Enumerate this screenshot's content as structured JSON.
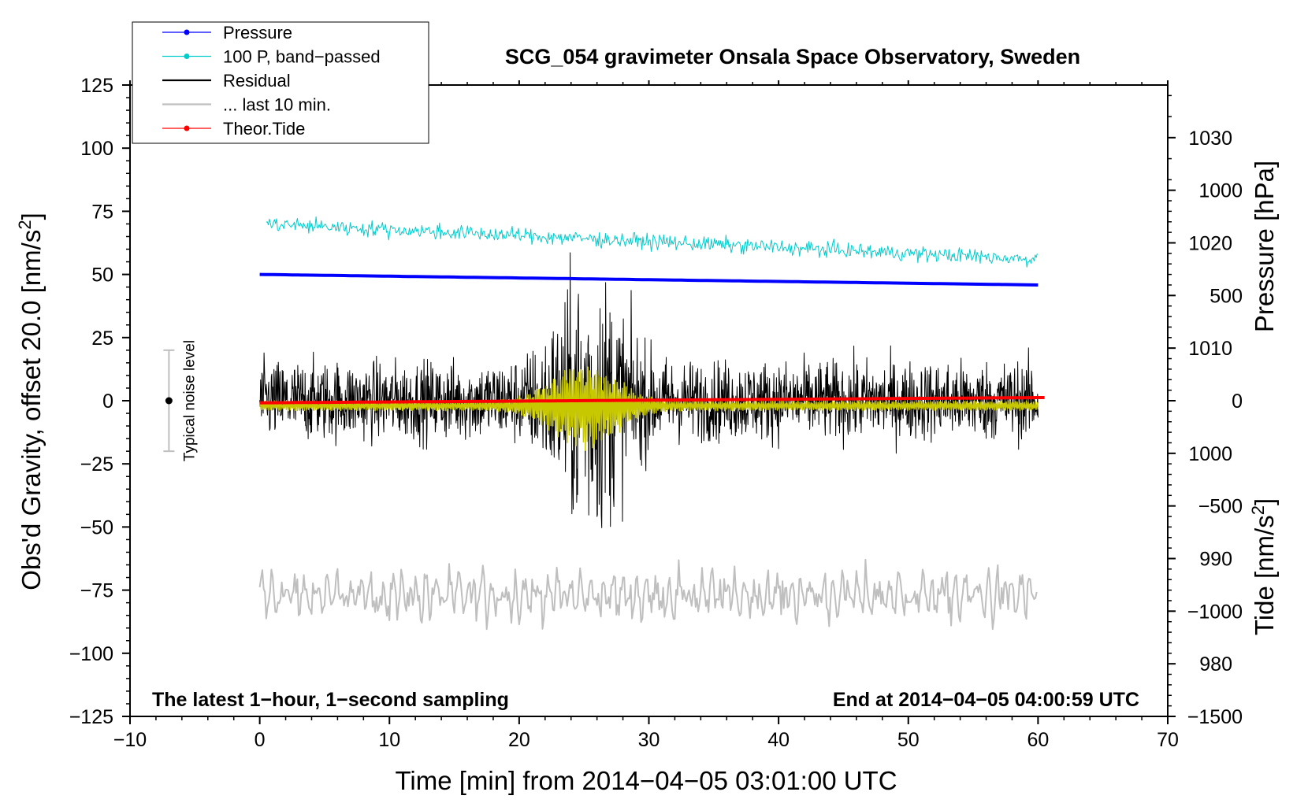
{
  "chart_data": {
    "type": "line",
    "title": "SCG_054 gravimeter Onsala Space Observatory, Sweden",
    "xlabel": "Time [min] from 2014−04−05 03:01:00 UTC",
    "ylabel_left": "Obs'd Gravity, offset 20.0 [nm/s",
    "ylabel_left_sup": "2",
    "ylabel_left_end": "]",
    "ylabel_right_pressure": "Pressure [hPa]",
    "ylabel_right_tide": "Tide [nm/s",
    "ylabel_right_tide_sup": "2",
    "ylabel_right_tide_end": "]",
    "xlim": [
      -10,
      70
    ],
    "ylim_left": [
      -125,
      125
    ],
    "pressure_axis_range": [
      975,
      1035
    ],
    "tide_axis_range": [
      -1500,
      1500
    ],
    "x_ticks": [
      -10,
      0,
      10,
      20,
      30,
      40,
      50,
      60,
      70
    ],
    "x_tick_labels": [
      "−10",
      "0",
      "10",
      "20",
      "30",
      "40",
      "50",
      "60",
      "70"
    ],
    "y_left_ticks": [
      125,
      100,
      75,
      50,
      25,
      0,
      -25,
      -50,
      -75,
      -100,
      -125
    ],
    "y_left_tick_labels": [
      "125",
      "100",
      "75",
      "50",
      "25",
      "0",
      "−25",
      "−50",
      "−75",
      "−100",
      "−125"
    ],
    "pressure_ticks": [
      1030,
      1020,
      1010,
      1000,
      990,
      980
    ],
    "pressure_tick_labels": [
      "1030",
      "1020",
      "1010",
      "1000",
      "990",
      "980"
    ],
    "tide_ticks": [
      1000,
      500,
      0,
      -500,
      -1000,
      -1500
    ],
    "tide_tick_labels": [
      "1000",
      "500",
      "0",
      "−500",
      "−1000",
      "−1500"
    ],
    "legend": {
      "position": "top-left",
      "entries": [
        {
          "label": "Pressure",
          "color": "#0000ff",
          "marker": true
        },
        {
          "label": "100 P, band−passed",
          "color": "#00cccc",
          "marker": true
        },
        {
          "label": "Residual",
          "color": "#000000",
          "marker": false
        },
        {
          "label": "... last 10 min.",
          "color": "#bfbfbf",
          "marker": false
        },
        {
          "label": "Theor.Tide",
          "color": "#ff0000",
          "marker": true
        }
      ]
    },
    "annotations": {
      "left_note": "The latest 1−hour, 1−second sampling",
      "right_note": "End at 2014−04−05 04:00:59 UTC",
      "noise_label": "Typical noise level",
      "noise_bar": {
        "x": -7,
        "center": 0,
        "half_range": 20
      }
    },
    "series": [
      {
        "name": "Pressure",
        "color": "#0000ff",
        "axis": "pressure",
        "x_range": [
          0,
          60
        ],
        "start": 1017.0,
        "end": 1016.0
      },
      {
        "name": "100 P, band−passed",
        "color": "#00cccc",
        "axis": "left",
        "x_range": [
          0.5,
          60
        ],
        "start": 70,
        "end": 56,
        "noise_amplitude": 3
      },
      {
        "name": "Residual",
        "color": "#000000",
        "axis": "left",
        "x_range": [
          0,
          60
        ],
        "center": 0,
        "base_amplitude": 13,
        "peak_amplitude": 45,
        "peak_time": 25.5
      },
      {
        "name": "Residual smoothed",
        "color": "#c8c800",
        "axis": "left",
        "x_range": [
          0,
          60
        ],
        "center": -2,
        "base_amplitude": 2,
        "peak_amplitude": 18,
        "peak_time": 25
      },
      {
        "name": "... last 10 min.",
        "color": "#bfbfbf",
        "axis": "left",
        "x_range": [
          0,
          60
        ],
        "center": -77,
        "amplitude": 15
      },
      {
        "name": "Theor.Tide",
        "color": "#ff0000",
        "axis": "tide",
        "x_range": [
          0,
          60.5
        ],
        "start": -10,
        "end": 15
      }
    ],
    "colors": {
      "pressure": "#0000ff",
      "bandpassed": "#00cccc",
      "residual": "#000000",
      "smoothed": "#c8c800",
      "last10": "#bfbfbf",
      "tide": "#ff0000",
      "noise_bar": "#bfbfbf"
    }
  }
}
